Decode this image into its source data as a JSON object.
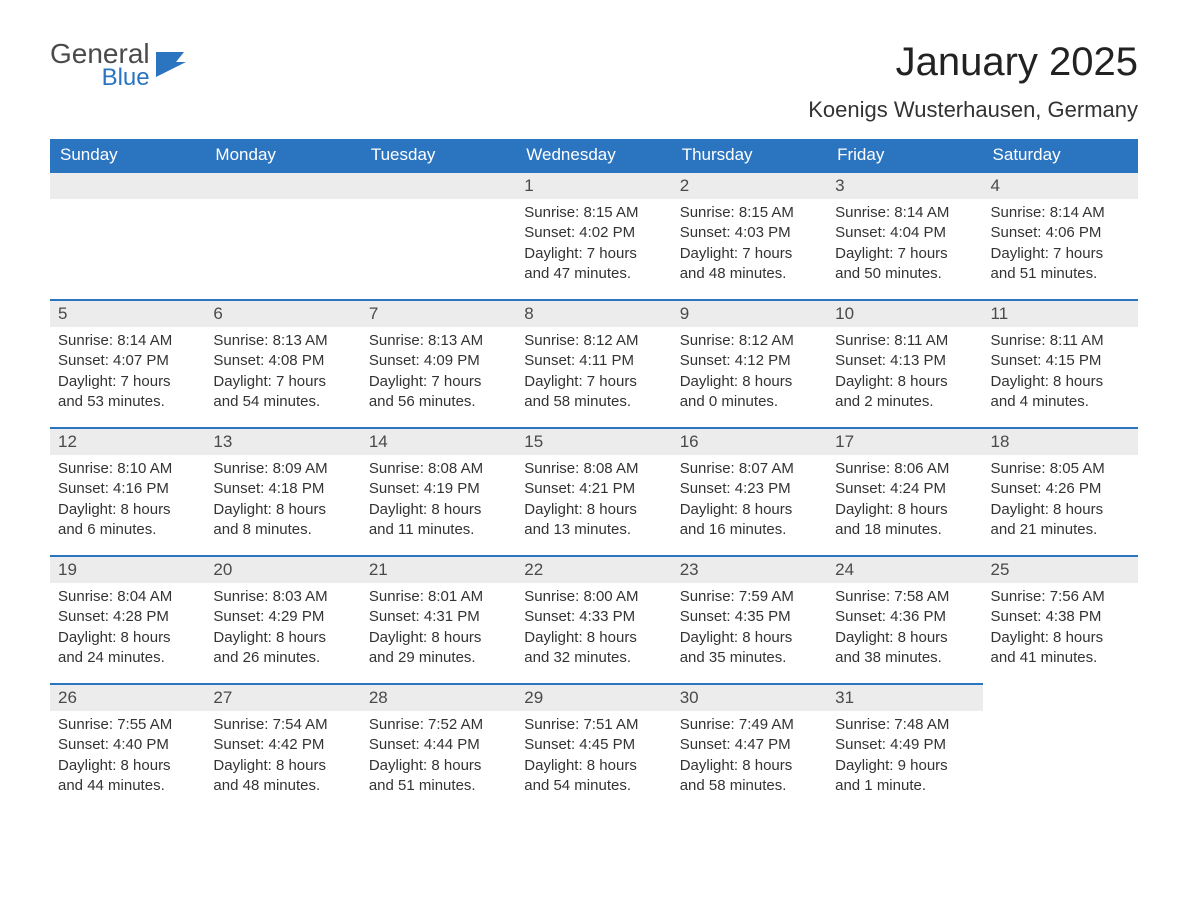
{
  "logo": {
    "general": "General",
    "blue": "Blue"
  },
  "colors": {
    "header_bg": "#2b74c0",
    "header_text": "#ffffff",
    "daynum_bg": "#ececec",
    "daynum_border": "#2b74c0",
    "text": "#333333",
    "logo_gray": "#4a4a4a",
    "logo_blue": "#2b74c0",
    "page_bg": "#ffffff"
  },
  "title": "January 2025",
  "location": "Koenigs Wusterhausen, Germany",
  "weekdays": [
    "Sunday",
    "Monday",
    "Tuesday",
    "Wednesday",
    "Thursday",
    "Friday",
    "Saturday"
  ],
  "leading_blanks": 3,
  "days": [
    {
      "n": "1",
      "sunrise": "Sunrise: 8:15 AM",
      "sunset": "Sunset: 4:02 PM",
      "day1": "Daylight: 7 hours",
      "day2": "and 47 minutes."
    },
    {
      "n": "2",
      "sunrise": "Sunrise: 8:15 AM",
      "sunset": "Sunset: 4:03 PM",
      "day1": "Daylight: 7 hours",
      "day2": "and 48 minutes."
    },
    {
      "n": "3",
      "sunrise": "Sunrise: 8:14 AM",
      "sunset": "Sunset: 4:04 PM",
      "day1": "Daylight: 7 hours",
      "day2": "and 50 minutes."
    },
    {
      "n": "4",
      "sunrise": "Sunrise: 8:14 AM",
      "sunset": "Sunset: 4:06 PM",
      "day1": "Daylight: 7 hours",
      "day2": "and 51 minutes."
    },
    {
      "n": "5",
      "sunrise": "Sunrise: 8:14 AM",
      "sunset": "Sunset: 4:07 PM",
      "day1": "Daylight: 7 hours",
      "day2": "and 53 minutes."
    },
    {
      "n": "6",
      "sunrise": "Sunrise: 8:13 AM",
      "sunset": "Sunset: 4:08 PM",
      "day1": "Daylight: 7 hours",
      "day2": "and 54 minutes."
    },
    {
      "n": "7",
      "sunrise": "Sunrise: 8:13 AM",
      "sunset": "Sunset: 4:09 PM",
      "day1": "Daylight: 7 hours",
      "day2": "and 56 minutes."
    },
    {
      "n": "8",
      "sunrise": "Sunrise: 8:12 AM",
      "sunset": "Sunset: 4:11 PM",
      "day1": "Daylight: 7 hours",
      "day2": "and 58 minutes."
    },
    {
      "n": "9",
      "sunrise": "Sunrise: 8:12 AM",
      "sunset": "Sunset: 4:12 PM",
      "day1": "Daylight: 8 hours",
      "day2": "and 0 minutes."
    },
    {
      "n": "10",
      "sunrise": "Sunrise: 8:11 AM",
      "sunset": "Sunset: 4:13 PM",
      "day1": "Daylight: 8 hours",
      "day2": "and 2 minutes."
    },
    {
      "n": "11",
      "sunrise": "Sunrise: 8:11 AM",
      "sunset": "Sunset: 4:15 PM",
      "day1": "Daylight: 8 hours",
      "day2": "and 4 minutes."
    },
    {
      "n": "12",
      "sunrise": "Sunrise: 8:10 AM",
      "sunset": "Sunset: 4:16 PM",
      "day1": "Daylight: 8 hours",
      "day2": "and 6 minutes."
    },
    {
      "n": "13",
      "sunrise": "Sunrise: 8:09 AM",
      "sunset": "Sunset: 4:18 PM",
      "day1": "Daylight: 8 hours",
      "day2": "and 8 minutes."
    },
    {
      "n": "14",
      "sunrise": "Sunrise: 8:08 AM",
      "sunset": "Sunset: 4:19 PM",
      "day1": "Daylight: 8 hours",
      "day2": "and 11 minutes."
    },
    {
      "n": "15",
      "sunrise": "Sunrise: 8:08 AM",
      "sunset": "Sunset: 4:21 PM",
      "day1": "Daylight: 8 hours",
      "day2": "and 13 minutes."
    },
    {
      "n": "16",
      "sunrise": "Sunrise: 8:07 AM",
      "sunset": "Sunset: 4:23 PM",
      "day1": "Daylight: 8 hours",
      "day2": "and 16 minutes."
    },
    {
      "n": "17",
      "sunrise": "Sunrise: 8:06 AM",
      "sunset": "Sunset: 4:24 PM",
      "day1": "Daylight: 8 hours",
      "day2": "and 18 minutes."
    },
    {
      "n": "18",
      "sunrise": "Sunrise: 8:05 AM",
      "sunset": "Sunset: 4:26 PM",
      "day1": "Daylight: 8 hours",
      "day2": "and 21 minutes."
    },
    {
      "n": "19",
      "sunrise": "Sunrise: 8:04 AM",
      "sunset": "Sunset: 4:28 PM",
      "day1": "Daylight: 8 hours",
      "day2": "and 24 minutes."
    },
    {
      "n": "20",
      "sunrise": "Sunrise: 8:03 AM",
      "sunset": "Sunset: 4:29 PM",
      "day1": "Daylight: 8 hours",
      "day2": "and 26 minutes."
    },
    {
      "n": "21",
      "sunrise": "Sunrise: 8:01 AM",
      "sunset": "Sunset: 4:31 PM",
      "day1": "Daylight: 8 hours",
      "day2": "and 29 minutes."
    },
    {
      "n": "22",
      "sunrise": "Sunrise: 8:00 AM",
      "sunset": "Sunset: 4:33 PM",
      "day1": "Daylight: 8 hours",
      "day2": "and 32 minutes."
    },
    {
      "n": "23",
      "sunrise": "Sunrise: 7:59 AM",
      "sunset": "Sunset: 4:35 PM",
      "day1": "Daylight: 8 hours",
      "day2": "and 35 minutes."
    },
    {
      "n": "24",
      "sunrise": "Sunrise: 7:58 AM",
      "sunset": "Sunset: 4:36 PM",
      "day1": "Daylight: 8 hours",
      "day2": "and 38 minutes."
    },
    {
      "n": "25",
      "sunrise": "Sunrise: 7:56 AM",
      "sunset": "Sunset: 4:38 PM",
      "day1": "Daylight: 8 hours",
      "day2": "and 41 minutes."
    },
    {
      "n": "26",
      "sunrise": "Sunrise: 7:55 AM",
      "sunset": "Sunset: 4:40 PM",
      "day1": "Daylight: 8 hours",
      "day2": "and 44 minutes."
    },
    {
      "n": "27",
      "sunrise": "Sunrise: 7:54 AM",
      "sunset": "Sunset: 4:42 PM",
      "day1": "Daylight: 8 hours",
      "day2": "and 48 minutes."
    },
    {
      "n": "28",
      "sunrise": "Sunrise: 7:52 AM",
      "sunset": "Sunset: 4:44 PM",
      "day1": "Daylight: 8 hours",
      "day2": "and 51 minutes."
    },
    {
      "n": "29",
      "sunrise": "Sunrise: 7:51 AM",
      "sunset": "Sunset: 4:45 PM",
      "day1": "Daylight: 8 hours",
      "day2": "and 54 minutes."
    },
    {
      "n": "30",
      "sunrise": "Sunrise: 7:49 AM",
      "sunset": "Sunset: 4:47 PM",
      "day1": "Daylight: 8 hours",
      "day2": "and 58 minutes."
    },
    {
      "n": "31",
      "sunrise": "Sunrise: 7:48 AM",
      "sunset": "Sunset: 4:49 PM",
      "day1": "Daylight: 9 hours",
      "day2": "and 1 minute."
    }
  ]
}
